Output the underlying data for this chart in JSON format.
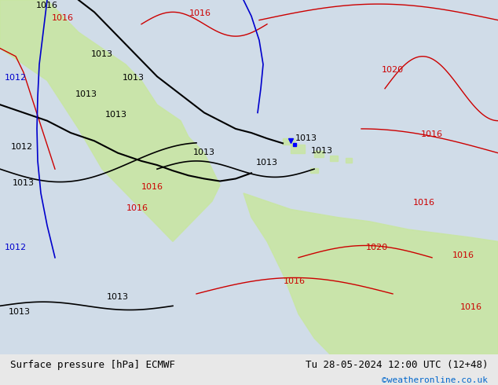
{
  "title_left": "Surface pressure [hPa] ECMWF",
  "title_right": "Tu 28-05-2024 12:00 UTC (12+48)",
  "credit": "©weatheronline.co.uk",
  "bg_color_land": "#c8e6a0",
  "bg_color_sea": "#d8e8f0",
  "bg_color_outer": "#e0e0e0",
  "contour_color_red": "#cc0000",
  "contour_color_black": "#000000",
  "contour_color_blue": "#0000cc",
  "label_fontsize": 8,
  "title_fontsize": 9,
  "credit_fontsize": 8,
  "figsize": [
    6.34,
    4.9
  ],
  "dpi": 100
}
